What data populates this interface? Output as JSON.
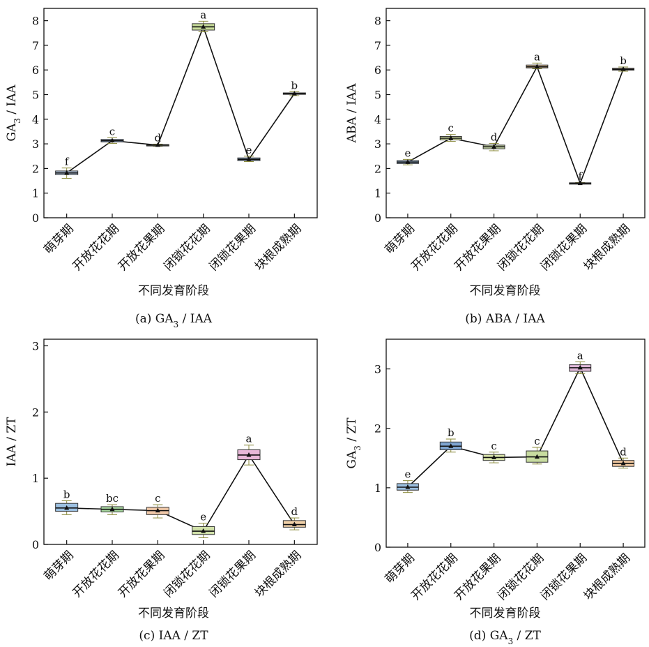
{
  "chart_data": [
    {
      "type": "box",
      "caption": "(a) GA₃ / IAA",
      "xlabel": "不同发育阶段",
      "ylabel": "GA₃ / IAA",
      "ylim": [
        0,
        8.5
      ],
      "yticks": [
        0,
        1,
        2,
        3,
        4,
        5,
        6,
        7,
        8
      ],
      "categories": [
        "萌芽期",
        "开放花花期",
        "开放花果期",
        "闭锁花花期",
        "闭锁花果期",
        "块根成熟期"
      ],
      "mean_line": true,
      "boxes": [
        {
          "category": "萌芽期",
          "min": 1.6,
          "q1": 1.75,
          "median": 1.82,
          "q3": 1.9,
          "max": 2.02,
          "mean": 1.82,
          "letter": "f",
          "color": "#b8cde6"
        },
        {
          "category": "开放花花期",
          "min": 3.02,
          "q1": 3.08,
          "median": 3.13,
          "q3": 3.18,
          "max": 3.25,
          "mean": 3.13,
          "letter": "c",
          "color": "#8eb0d8"
        },
        {
          "category": "开放花果期",
          "min": 2.9,
          "q1": 2.92,
          "median": 2.95,
          "q3": 2.97,
          "max": 2.99,
          "mean": 2.95,
          "letter": "d",
          "color": "#dfe9c4"
        },
        {
          "category": "闭锁花花期",
          "min": 7.55,
          "q1": 7.62,
          "median": 7.75,
          "q3": 7.88,
          "max": 7.98,
          "mean": 7.75,
          "letter": "a",
          "color": "#c8dc9a"
        },
        {
          "category": "闭锁花果期",
          "min": 2.28,
          "q1": 2.32,
          "median": 2.37,
          "q3": 2.43,
          "max": 2.5,
          "mean": 2.37,
          "letter": "e",
          "color": "#7d98b4"
        },
        {
          "category": "块根成熟期",
          "min": 4.96,
          "q1": 5.01,
          "median": 5.04,
          "q3": 5.07,
          "max": 5.12,
          "mean": 5.04,
          "letter": "b",
          "color": "#bfcfe0"
        }
      ]
    },
    {
      "type": "box",
      "caption": "(b) ABA / IAA",
      "xlabel": "不同发育阶段",
      "ylabel": "ABA / IAA",
      "ylim": [
        0,
        8.5
      ],
      "yticks": [
        0,
        1,
        2,
        3,
        4,
        5,
        6,
        7,
        8
      ],
      "categories": [
        "萌芽期",
        "开放花花期",
        "开放花果期",
        "闭锁花花期",
        "闭锁花果期",
        "块根成熟期"
      ],
      "mean_line": true,
      "boxes": [
        {
          "category": "萌芽期",
          "min": 2.15,
          "q1": 2.2,
          "median": 2.26,
          "q3": 2.32,
          "max": 2.37,
          "mean": 2.26,
          "letter": "e",
          "color": "#9ab8d8"
        },
        {
          "category": "开放花花期",
          "min": 3.1,
          "q1": 3.16,
          "median": 3.23,
          "q3": 3.3,
          "max": 3.38,
          "mean": 3.23,
          "letter": "c",
          "color": "#d9e5a8"
        },
        {
          "category": "开放花果期",
          "min": 2.72,
          "q1": 2.8,
          "median": 2.88,
          "q3": 2.95,
          "max": 3.02,
          "mean": 2.88,
          "letter": "d",
          "color": "#c9d9a8"
        },
        {
          "category": "闭锁花花期",
          "min": 6.05,
          "q1": 6.08,
          "median": 6.13,
          "q3": 6.2,
          "max": 6.28,
          "mean": 6.13,
          "letter": "a",
          "color": "#e8c8a0"
        },
        {
          "category": "闭锁花果期",
          "min": 1.37,
          "q1": 1.38,
          "median": 1.4,
          "q3": 1.42,
          "max": 1.43,
          "mean": 1.4,
          "letter": "f",
          "color": "#c8d8e8"
        },
        {
          "category": "块根成熟期",
          "min": 5.95,
          "q1": 5.99,
          "median": 6.03,
          "q3": 6.07,
          "max": 6.12,
          "mean": 6.03,
          "letter": "b",
          "color": "#e6c8a8"
        }
      ]
    },
    {
      "type": "box",
      "caption": "(c) IAA / ZT",
      "xlabel": "不同发育阶段",
      "ylabel": "IAA / ZT",
      "ylim": [
        0,
        3.1
      ],
      "yticks": [
        0,
        1,
        2,
        3
      ],
      "categories": [
        "萌芽期",
        "开放花花期",
        "开放花果期",
        "闭锁花花期",
        "闭锁花果期",
        "块根成熟期"
      ],
      "mean_line": true,
      "boxes": [
        {
          "category": "萌芽期",
          "min": 0.45,
          "q1": 0.5,
          "median": 0.55,
          "q3": 0.62,
          "max": 0.66,
          "mean": 0.55,
          "letter": "b",
          "color": "#9cc0e0"
        },
        {
          "category": "开放花花期",
          "min": 0.45,
          "q1": 0.49,
          "median": 0.53,
          "q3": 0.57,
          "max": 0.6,
          "mean": 0.53,
          "letter": "bc",
          "color": "#a8d8a0"
        },
        {
          "category": "开放花果期",
          "min": 0.4,
          "q1": 0.45,
          "median": 0.51,
          "q3": 0.56,
          "max": 0.6,
          "mean": 0.51,
          "letter": "c",
          "color": "#f0c8a8"
        },
        {
          "category": "闭锁花花期",
          "min": 0.1,
          "q1": 0.15,
          "median": 0.2,
          "q3": 0.27,
          "max": 0.32,
          "mean": 0.2,
          "letter": "e",
          "color": "#d0e0a8"
        },
        {
          "category": "闭锁花果期",
          "min": 1.2,
          "q1": 1.28,
          "median": 1.35,
          "q3": 1.43,
          "max": 1.5,
          "mean": 1.35,
          "letter": "a",
          "color": "#e8b8d8"
        },
        {
          "category": "块根成熟期",
          "min": 0.22,
          "q1": 0.26,
          "median": 0.3,
          "q3": 0.36,
          "max": 0.4,
          "mean": 0.3,
          "letter": "d",
          "color": "#f0d0a8"
        }
      ]
    },
    {
      "type": "box",
      "caption": "(d) GA₃ / ZT",
      "xlabel": "不同发育阶段",
      "ylabel": "GA₃ / ZT",
      "ylim": [
        0,
        3.5
      ],
      "yticks": [
        0,
        1,
        2,
        3
      ],
      "categories": [
        "萌芽期",
        "开放花花期",
        "开放花果期",
        "闭锁花花期",
        "闭锁花果期",
        "块根成熟期"
      ],
      "mean_line": true,
      "boxes": [
        {
          "category": "萌芽期",
          "min": 0.92,
          "q1": 0.96,
          "median": 1.01,
          "q3": 1.07,
          "max": 1.12,
          "mean": 1.01,
          "letter": "e",
          "color": "#9cc0e0"
        },
        {
          "category": "开放花花期",
          "min": 1.6,
          "q1": 1.64,
          "median": 1.7,
          "q3": 1.77,
          "max": 1.82,
          "mean": 1.7,
          "letter": "b",
          "color": "#7ea4d0"
        },
        {
          "category": "开放花果期",
          "min": 1.42,
          "q1": 1.46,
          "median": 1.51,
          "q3": 1.56,
          "max": 1.6,
          "mean": 1.51,
          "letter": "c",
          "color": "#d8e4a8"
        },
        {
          "category": "闭锁花花期",
          "min": 1.4,
          "q1": 1.43,
          "median": 1.52,
          "q3": 1.62,
          "max": 1.68,
          "mean": 1.52,
          "letter": "c",
          "color": "#c8dca0"
        },
        {
          "category": "闭锁花果期",
          "min": 2.92,
          "q1": 2.96,
          "median": 3.02,
          "q3": 3.07,
          "max": 3.12,
          "mean": 3.02,
          "letter": "a",
          "color": "#e0b8d8"
        },
        {
          "category": "块根成熟期",
          "min": 1.33,
          "q1": 1.36,
          "median": 1.41,
          "q3": 1.46,
          "max": 1.5,
          "mean": 1.41,
          "letter": "d",
          "color": "#f0c8a0"
        }
      ]
    }
  ]
}
